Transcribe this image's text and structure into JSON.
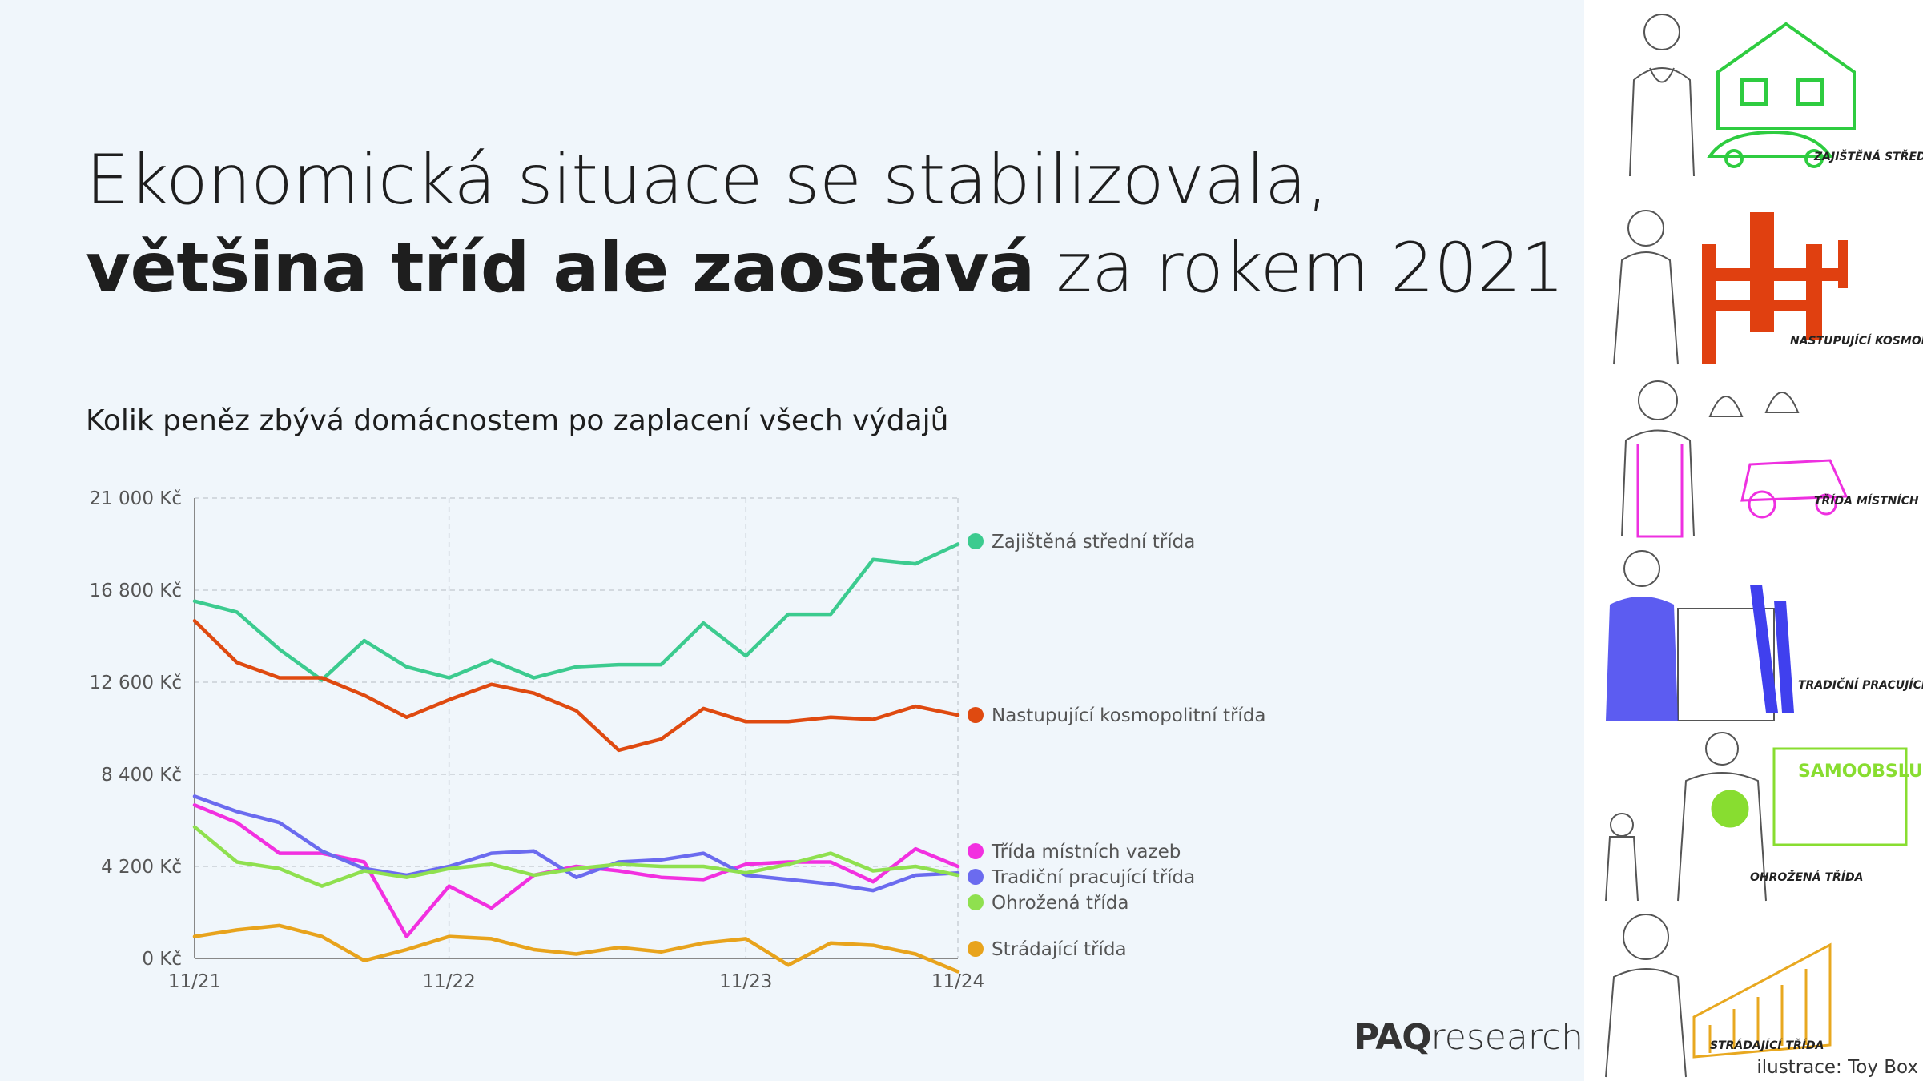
{
  "title": {
    "line1": "Ekonomická situace se stabilizovala,",
    "line2_bold": "většina tříd ale zaostává",
    "line2_rest": " za rokem  2021"
  },
  "brand": {
    "bold": "PAQ",
    "rest": "research"
  },
  "credit": "ilustrace: Toy Box",
  "illustrations": [
    {
      "label": "ZAJIŠTĚNÁ STŘEDNÍ TŘÍDA",
      "color": "#2ecc40"
    },
    {
      "label": "NASTUPUJÍCÍ KOSMOPOLITNÍ TŘÍDA",
      "color": "#e04010"
    },
    {
      "label": "TŘÍDA MÍSTNÍCH VAZEB",
      "color": "#ee30e0"
    },
    {
      "label": "TRADIČNÍ PRACUJÍCÍ TŘÍDA",
      "color": "#4040ee"
    },
    {
      "label": "OHROŽENÁ TŘÍDA",
      "color": "#88dd30"
    },
    {
      "label": "STRÁDAJÍCÍ TŘÍDA",
      "color": "#e8a820"
    }
  ],
  "chart_data": {
    "type": "line",
    "title": "Kolik peněz zbývá domácnostem po zaplacení všech výdajů",
    "xlabel": "",
    "ylabel": "",
    "x_tick_labels": [
      "11/21",
      "11/22",
      "11/23",
      "11/24"
    ],
    "x_tick_positions": [
      0,
      6,
      13,
      18
    ],
    "y_ticks": [
      0,
      4200,
      8400,
      12600,
      16800,
      21000
    ],
    "y_tick_labels": [
      "0 Kč",
      "4 200 Kč",
      "8 400 Kč",
      "12 600 Kč",
      "16 800 Kč",
      "21 000 Kč"
    ],
    "ylim": [
      0,
      21000
    ],
    "xlim": [
      0,
      18
    ],
    "grid": true,
    "legend_position": "right-end-of-lines",
    "series": [
      {
        "name": "Zajištěná střední třída",
        "color": "#3ccb8f",
        "values": [
          16300,
          15800,
          14100,
          12700,
          14500,
          13300,
          12800,
          13600,
          12800,
          13300,
          13400,
          13400,
          15300,
          13800,
          15700,
          15700,
          18200,
          18000,
          18900
        ]
      },
      {
        "name": "Nastupující kosmopolitní třída",
        "color": "#df4a10",
        "values": [
          15400,
          13500,
          12800,
          12800,
          12000,
          11000,
          11800,
          12500,
          12100,
          11300,
          9500,
          10000,
          11400,
          10800,
          10800,
          11000,
          10900,
          11500,
          11100
        ]
      },
      {
        "name": "Třída místních vazeb",
        "color": "#f230e0",
        "values": [
          7000,
          6200,
          4800,
          4800,
          4400,
          1000,
          3300,
          2300,
          3800,
          4200,
          4000,
          3700,
          3600,
          4300,
          4400,
          4400,
          3500,
          5000,
          4200
        ]
      },
      {
        "name": "Tradiční pracující třída",
        "color": "#6b6bef",
        "values": [
          7400,
          6700,
          6200,
          4900,
          4100,
          3800,
          4200,
          4800,
          4900,
          3700,
          4400,
          4500,
          4800,
          3800,
          3600,
          3400,
          3100,
          3800,
          3900
        ]
      },
      {
        "name": "Ohrožená třída",
        "color": "#8fe04f",
        "values": [
          6000,
          4400,
          4100,
          3300,
          4000,
          3700,
          4100,
          4300,
          3800,
          4100,
          4300,
          4200,
          4200,
          3900,
          4300,
          4800,
          4000,
          4200,
          3800
        ]
      },
      {
        "name": "Strádající třída",
        "color": "#e8a31c",
        "values": [
          1000,
          1300,
          1500,
          1000,
          -100,
          400,
          1000,
          900,
          400,
          200,
          500,
          300,
          700,
          900,
          -300,
          700,
          600,
          200,
          -600
        ]
      }
    ]
  }
}
